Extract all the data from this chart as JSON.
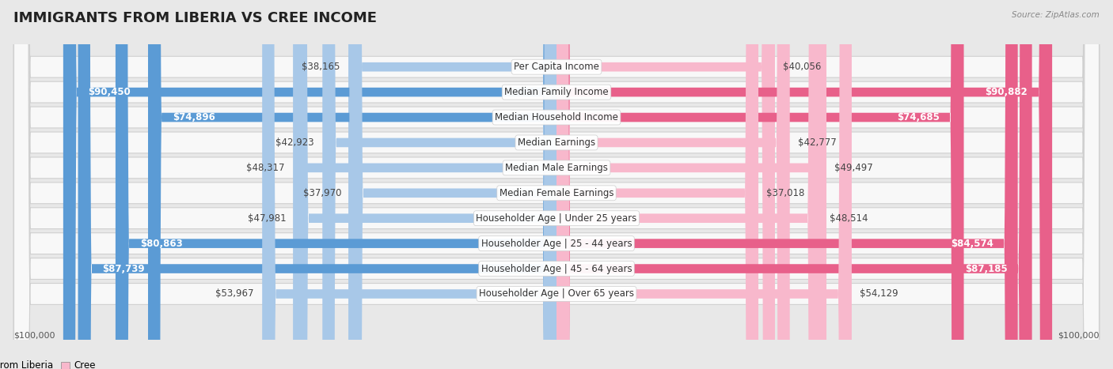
{
  "title": "IMMIGRANTS FROM LIBERIA VS CREE INCOME",
  "source": "Source: ZipAtlas.com",
  "categories": [
    "Per Capita Income",
    "Median Family Income",
    "Median Household Income",
    "Median Earnings",
    "Median Male Earnings",
    "Median Female Earnings",
    "Householder Age | Under 25 years",
    "Householder Age | 25 - 44 years",
    "Householder Age | 45 - 64 years",
    "Householder Age | Over 65 years"
  ],
  "liberia_values": [
    38165,
    90450,
    74896,
    42923,
    48317,
    37970,
    47981,
    80863,
    87739,
    53967
  ],
  "cree_values": [
    40056,
    90882,
    74685,
    42777,
    49497,
    37018,
    48514,
    84574,
    87185,
    54129
  ],
  "liberia_labels": [
    "$38,165",
    "$90,450",
    "$74,896",
    "$42,923",
    "$48,317",
    "$37,970",
    "$47,981",
    "$80,863",
    "$87,739",
    "$53,967"
  ],
  "cree_labels": [
    "$40,056",
    "$90,882",
    "$74,685",
    "$42,777",
    "$49,497",
    "$37,018",
    "$48,514",
    "$84,574",
    "$87,185",
    "$54,129"
  ],
  "full_threshold": 70000,
  "max_value": 100000,
  "liberia_color_light": "#a8c8e8",
  "liberia_color_dark": "#5b9bd5",
  "cree_color_light": "#f8b8cc",
  "cree_color_dark": "#e8608a",
  "fig_bg": "#e8e8e8",
  "row_bg": "#f8f8f8",
  "row_border": "#d0d0d0",
  "label_fontsize": 8.5,
  "category_fontsize": 8.5,
  "title_fontsize": 13
}
